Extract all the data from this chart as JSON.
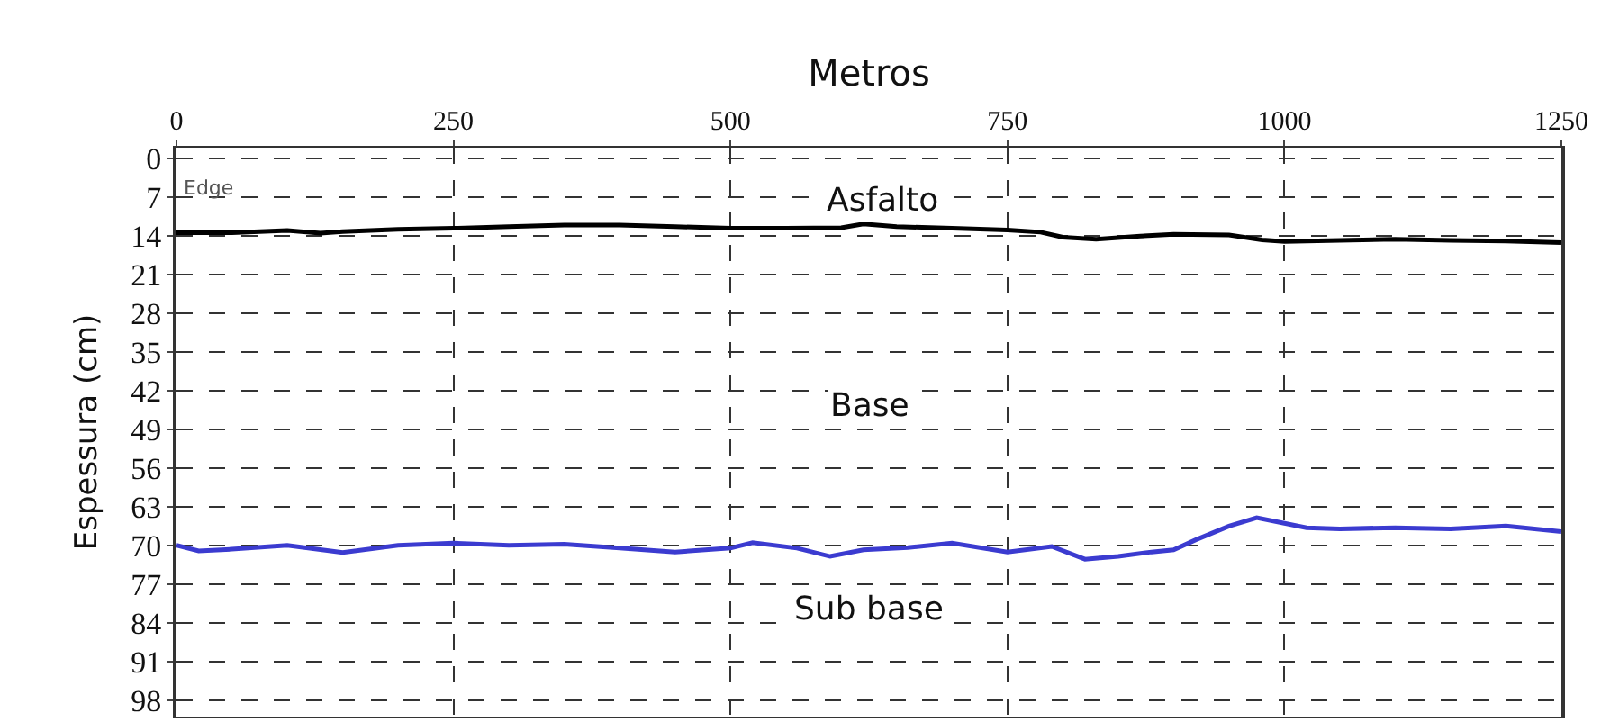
{
  "chart_data": {
    "type": "line",
    "xlabel": "Metros",
    "ylabel": "Espessura (cm)",
    "xlim": [
      0,
      1250
    ],
    "xticks": [
      0,
      250,
      500,
      750,
      1000,
      1250
    ],
    "ylim": [
      101,
      -2
    ],
    "yticks": [
      0,
      7,
      14,
      21,
      28,
      35,
      42,
      49,
      56,
      63,
      70,
      77,
      84,
      91,
      98
    ],
    "grid": true,
    "line_style": "solid",
    "marker": "none",
    "series": [
      {
        "color": "#000000",
        "x": [
          0,
          50,
          100,
          130,
          150,
          200,
          250,
          300,
          350,
          400,
          450,
          500,
          550,
          600,
          620,
          650,
          700,
          750,
          780,
          800,
          830,
          870,
          900,
          950,
          980,
          1000,
          1050,
          1100,
          1150,
          1200,
          1250
        ],
        "values": [
          13.4,
          13.4,
          13.0,
          13.5,
          13.2,
          12.8,
          12.6,
          12.3,
          12.0,
          12.0,
          12.3,
          12.6,
          12.6,
          12.5,
          11.8,
          12.3,
          12.6,
          12.9,
          13.3,
          14.2,
          14.6,
          14.0,
          13.7,
          13.8,
          14.7,
          15.0,
          14.8,
          14.6,
          14.8,
          14.9,
          15.2
        ]
      },
      {
        "color": "#3b3bd0",
        "x": [
          0,
          20,
          50,
          100,
          150,
          200,
          250,
          300,
          350,
          400,
          450,
          500,
          520,
          560,
          590,
          620,
          660,
          700,
          750,
          790,
          820,
          850,
          880,
          900,
          920,
          950,
          975,
          1000,
          1020,
          1050,
          1100,
          1150,
          1200,
          1250
        ],
        "values": [
          70,
          71,
          70.7,
          70,
          71.3,
          70,
          69.6,
          70,
          69.8,
          70.5,
          71.2,
          70.5,
          69.5,
          70.5,
          72,
          70.8,
          70.4,
          69.6,
          71.2,
          70.2,
          72.5,
          72,
          71.2,
          70.8,
          69,
          66.5,
          65,
          66,
          66.8,
          67,
          66.8,
          67,
          66.5,
          67.5
        ]
      }
    ],
    "annotations": [
      "Edge",
      "Asfalto",
      "Base",
      "Sub base"
    ]
  }
}
